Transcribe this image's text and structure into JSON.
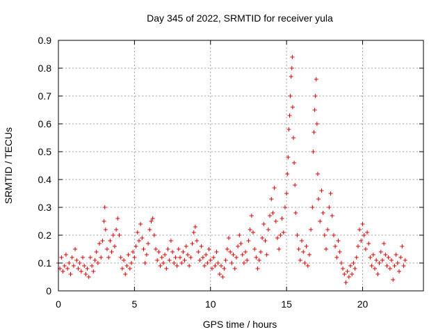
{
  "chart_data": {
    "type": "scatter",
    "title": "Day 345 of 2022, SRMTID for receiver yula",
    "xlabel": "GPS time / hours",
    "ylabel": "SRMTID / TECUs",
    "xlim": [
      0,
      24
    ],
    "ylim": [
      0,
      0.9
    ],
    "xticks": [
      0,
      5,
      10,
      15,
      20
    ],
    "yticks": [
      0,
      0.1,
      0.2,
      0.3,
      0.4,
      0.5,
      0.6,
      0.7,
      0.8,
      0.9
    ],
    "xtick_labels": [
      "0",
      "5",
      "10",
      "15",
      "20"
    ],
    "ytick_labels": [
      "0",
      "0.1",
      "0.2",
      "0.3",
      "0.4",
      "0.5",
      "0.6",
      "0.7",
      "0.8",
      "0.9"
    ],
    "grid": true,
    "marker": "+",
    "color": "#ff0000",
    "series": [
      {
        "name": "SRMTID",
        "points": [
          [
            0.0,
            0.1
          ],
          [
            0.1,
            0.08
          ],
          [
            0.2,
            0.12
          ],
          [
            0.3,
            0.07
          ],
          [
            0.4,
            0.09
          ],
          [
            0.5,
            0.13
          ],
          [
            0.6,
            0.08
          ],
          [
            0.7,
            0.1
          ],
          [
            0.8,
            0.06
          ],
          [
            0.9,
            0.12
          ],
          [
            1.0,
            0.09
          ],
          [
            1.1,
            0.15
          ],
          [
            1.2,
            0.11
          ],
          [
            1.3,
            0.08
          ],
          [
            1.4,
            0.1
          ],
          [
            1.5,
            0.07
          ],
          [
            1.6,
            0.12
          ],
          [
            1.7,
            0.09
          ],
          [
            1.8,
            0.06
          ],
          [
            1.9,
            0.08
          ],
          [
            2.0,
            0.05
          ],
          [
            2.1,
            0.12
          ],
          [
            2.2,
            0.09
          ],
          [
            2.3,
            0.07
          ],
          [
            2.4,
            0.11
          ],
          [
            2.5,
            0.14
          ],
          [
            2.6,
            0.1
          ],
          [
            2.7,
            0.17
          ],
          [
            2.8,
            0.12
          ],
          [
            2.9,
            0.18
          ],
          [
            3.0,
            0.25
          ],
          [
            3.05,
            0.3
          ],
          [
            3.1,
            0.22
          ],
          [
            3.2,
            0.15
          ],
          [
            3.3,
            0.12
          ],
          [
            3.4,
            0.18
          ],
          [
            3.5,
            0.14
          ],
          [
            3.6,
            0.2
          ],
          [
            3.7,
            0.16
          ],
          [
            3.8,
            0.22
          ],
          [
            3.9,
            0.26
          ],
          [
            4.0,
            0.2
          ],
          [
            4.1,
            0.12
          ],
          [
            4.2,
            0.08
          ],
          [
            4.3,
            0.11
          ],
          [
            4.4,
            0.06
          ],
          [
            4.5,
            0.09
          ],
          [
            4.6,
            0.13
          ],
          [
            4.7,
            0.08
          ],
          [
            4.8,
            0.1
          ],
          [
            4.9,
            0.14
          ],
          [
            5.0,
            0.12
          ],
          [
            5.1,
            0.16
          ],
          [
            5.2,
            0.21
          ],
          [
            5.3,
            0.18
          ],
          [
            5.4,
            0.24
          ],
          [
            5.5,
            0.19
          ],
          [
            5.6,
            0.15
          ],
          [
            5.7,
            0.1
          ],
          [
            5.8,
            0.13
          ],
          [
            5.9,
            0.17
          ],
          [
            6.0,
            0.22
          ],
          [
            6.1,
            0.25
          ],
          [
            6.2,
            0.26
          ],
          [
            6.3,
            0.2
          ],
          [
            6.4,
            0.15
          ],
          [
            6.5,
            0.11
          ],
          [
            6.6,
            0.14
          ],
          [
            6.7,
            0.09
          ],
          [
            6.8,
            0.12
          ],
          [
            6.9,
            0.1
          ],
          [
            7.0,
            0.13
          ],
          [
            7.1,
            0.08
          ],
          [
            7.2,
            0.15
          ],
          [
            7.3,
            0.11
          ],
          [
            7.4,
            0.18
          ],
          [
            7.5,
            0.14
          ],
          [
            7.6,
            0.1
          ],
          [
            7.7,
            0.12
          ],
          [
            7.8,
            0.09
          ],
          [
            7.9,
            0.15
          ],
          [
            8.0,
            0.12
          ],
          [
            8.1,
            0.1
          ],
          [
            8.2,
            0.14
          ],
          [
            8.3,
            0.11
          ],
          [
            8.4,
            0.16
          ],
          [
            8.5,
            0.13
          ],
          [
            8.6,
            0.09
          ],
          [
            8.7,
            0.12
          ],
          [
            8.8,
            0.17
          ],
          [
            8.9,
            0.21
          ],
          [
            9.0,
            0.23
          ],
          [
            9.1,
            0.18
          ],
          [
            9.2,
            0.14
          ],
          [
            9.3,
            0.11
          ],
          [
            9.4,
            0.16
          ],
          [
            9.5,
            0.12
          ],
          [
            9.6,
            0.09
          ],
          [
            9.7,
            0.13
          ],
          [
            9.8,
            0.1
          ],
          [
            9.9,
            0.15
          ],
          [
            10.0,
            0.11
          ],
          [
            10.1,
            0.08
          ],
          [
            10.2,
            0.12
          ],
          [
            10.3,
            0.09
          ],
          [
            10.4,
            0.14
          ],
          [
            10.5,
            0.1
          ],
          [
            10.6,
            0.06
          ],
          [
            10.7,
            0.09
          ],
          [
            10.8,
            0.05
          ],
          [
            10.9,
            0.08
          ],
          [
            11.0,
            0.11
          ],
          [
            11.1,
            0.15
          ],
          [
            11.2,
            0.19
          ],
          [
            11.3,
            0.14
          ],
          [
            11.4,
            0.1
          ],
          [
            11.5,
            0.13
          ],
          [
            11.6,
            0.08
          ],
          [
            11.7,
            0.12
          ],
          [
            11.8,
            0.16
          ],
          [
            11.9,
            0.2
          ],
          [
            12.0,
            0.17
          ],
          [
            12.1,
            0.13
          ],
          [
            12.2,
            0.1
          ],
          [
            12.3,
            0.14
          ],
          [
            12.4,
            0.11
          ],
          [
            12.5,
            0.18
          ],
          [
            12.6,
            0.22
          ],
          [
            12.7,
            0.27
          ],
          [
            12.8,
            0.21
          ],
          [
            12.9,
            0.15
          ],
          [
            13.0,
            0.12
          ],
          [
            13.1,
            0.08
          ],
          [
            13.2,
            0.11
          ],
          [
            13.3,
            0.14
          ],
          [
            13.4,
            0.19
          ],
          [
            13.5,
            0.24
          ],
          [
            13.6,
            0.18
          ],
          [
            13.7,
            0.13
          ],
          [
            13.8,
            0.22
          ],
          [
            13.9,
            0.27
          ],
          [
            14.0,
            0.33
          ],
          [
            14.1,
            0.28
          ],
          [
            14.2,
            0.37
          ],
          [
            14.3,
            0.25
          ],
          [
            14.4,
            0.19
          ],
          [
            14.5,
            0.15
          ],
          [
            14.6,
            0.2
          ],
          [
            14.7,
            0.26
          ],
          [
            14.8,
            0.21
          ],
          [
            14.9,
            0.3
          ],
          [
            15.0,
            0.35
          ],
          [
            15.05,
            0.42
          ],
          [
            15.1,
            0.48
          ],
          [
            15.15,
            0.58
          ],
          [
            15.2,
            0.63
          ],
          [
            15.25,
            0.7
          ],
          [
            15.3,
            0.77
          ],
          [
            15.35,
            0.8
          ],
          [
            15.38,
            0.84
          ],
          [
            15.4,
            0.66
          ],
          [
            15.45,
            0.55
          ],
          [
            15.5,
            0.46
          ],
          [
            15.55,
            0.38
          ],
          [
            15.6,
            0.28
          ],
          [
            15.7,
            0.2
          ],
          [
            15.8,
            0.15
          ],
          [
            15.9,
            0.11
          ],
          [
            16.0,
            0.18
          ],
          [
            16.1,
            0.14
          ],
          [
            16.2,
            0.1
          ],
          [
            16.3,
            0.16
          ],
          [
            16.4,
            0.09
          ],
          [
            16.5,
            0.13
          ],
          [
            16.6,
            0.22
          ],
          [
            16.7,
            0.3
          ],
          [
            16.75,
            0.5
          ],
          [
            16.8,
            0.57
          ],
          [
            16.85,
            0.65
          ],
          [
            16.9,
            0.7
          ],
          [
            16.95,
            0.76
          ],
          [
            17.0,
            0.6
          ],
          [
            17.05,
            0.42
          ],
          [
            17.1,
            0.33
          ],
          [
            17.2,
            0.25
          ],
          [
            17.3,
            0.36
          ],
          [
            17.4,
            0.28
          ],
          [
            17.5,
            0.2
          ],
          [
            17.6,
            0.15
          ],
          [
            17.7,
            0.22
          ],
          [
            17.8,
            0.3
          ],
          [
            17.9,
            0.35
          ],
          [
            18.0,
            0.27
          ],
          [
            18.1,
            0.2
          ],
          [
            18.2,
            0.16
          ],
          [
            18.3,
            0.12
          ],
          [
            18.4,
            0.18
          ],
          [
            18.5,
            0.14
          ],
          [
            18.6,
            0.1
          ],
          [
            18.7,
            0.08
          ],
          [
            18.8,
            0.06
          ],
          [
            18.9,
            0.03
          ],
          [
            19.0,
            0.07
          ],
          [
            19.1,
            0.05
          ],
          [
            19.2,
            0.09
          ],
          [
            19.3,
            0.06
          ],
          [
            19.4,
            0.1
          ],
          [
            19.5,
            0.08
          ],
          [
            19.6,
            0.12
          ],
          [
            19.7,
            0.16
          ],
          [
            19.8,
            0.22
          ],
          [
            19.9,
            0.18
          ],
          [
            20.0,
            0.24
          ],
          [
            20.1,
            0.2
          ],
          [
            20.2,
            0.15
          ],
          [
            20.3,
            0.21
          ],
          [
            20.4,
            0.17
          ],
          [
            20.5,
            0.12
          ],
          [
            20.6,
            0.09
          ],
          [
            20.7,
            0.13
          ],
          [
            20.8,
            0.08
          ],
          [
            20.9,
            0.11
          ],
          [
            21.0,
            0.06
          ],
          [
            21.1,
            0.1
          ],
          [
            21.2,
            0.14
          ],
          [
            21.3,
            0.11
          ],
          [
            21.4,
            0.17
          ],
          [
            21.5,
            0.13
          ],
          [
            21.6,
            0.09
          ],
          [
            21.7,
            0.12
          ],
          [
            21.8,
            0.08
          ],
          [
            21.9,
            0.11
          ],
          [
            22.0,
            0.04
          ],
          [
            22.1,
            0.09
          ],
          [
            22.2,
            0.13
          ],
          [
            22.3,
            0.1
          ],
          [
            22.4,
            0.07
          ],
          [
            22.5,
            0.12
          ],
          [
            22.6,
            0.16
          ],
          [
            22.7,
            0.09
          ],
          [
            22.8,
            0.11
          ]
        ]
      }
    ]
  }
}
